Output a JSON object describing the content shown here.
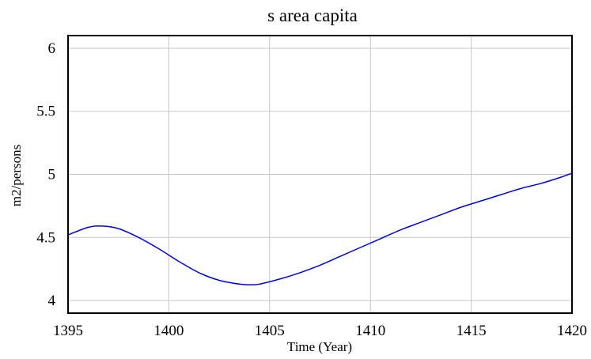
{
  "chart_data": {
    "type": "line",
    "title": "s area capita",
    "xlabel": "Time (Year)",
    "ylabel": "m2/persons",
    "xlim": [
      1395,
      1420
    ],
    "ylim": [
      3.9,
      6.1
    ],
    "x_ticks": [
      1395,
      1400,
      1405,
      1410,
      1415,
      1420
    ],
    "y_ticks": [
      4,
      4.5,
      5,
      5.5,
      6
    ],
    "x_tick_labels": [
      "1395",
      "1400",
      "1405",
      "1410",
      "1415",
      "1420"
    ],
    "y_tick_labels": [
      "4",
      "4.5",
      "5",
      "5.5",
      "6"
    ],
    "grid": true,
    "series": [
      {
        "color": "#0000e6",
        "x": [
          1395,
          1396,
          1396.7,
          1397.5,
          1398.5,
          1399.5,
          1400.5,
          1401.5,
          1402.5,
          1403.5,
          1404,
          1404.5,
          1405.5,
          1406.5,
          1407.5,
          1408.5,
          1409.5,
          1410.5,
          1411.5,
          1412.5,
          1413.5,
          1414.5,
          1415.5,
          1416.5,
          1417.5,
          1418.5,
          1419.5,
          1420
        ],
        "y": [
          4.52,
          4.58,
          4.59,
          4.57,
          4.5,
          4.41,
          4.31,
          4.22,
          4.16,
          4.13,
          4.125,
          4.13,
          4.17,
          4.22,
          4.28,
          4.35,
          4.42,
          4.49,
          4.56,
          4.62,
          4.68,
          4.74,
          4.79,
          4.84,
          4.89,
          4.93,
          4.98,
          5.01
        ]
      }
    ]
  }
}
